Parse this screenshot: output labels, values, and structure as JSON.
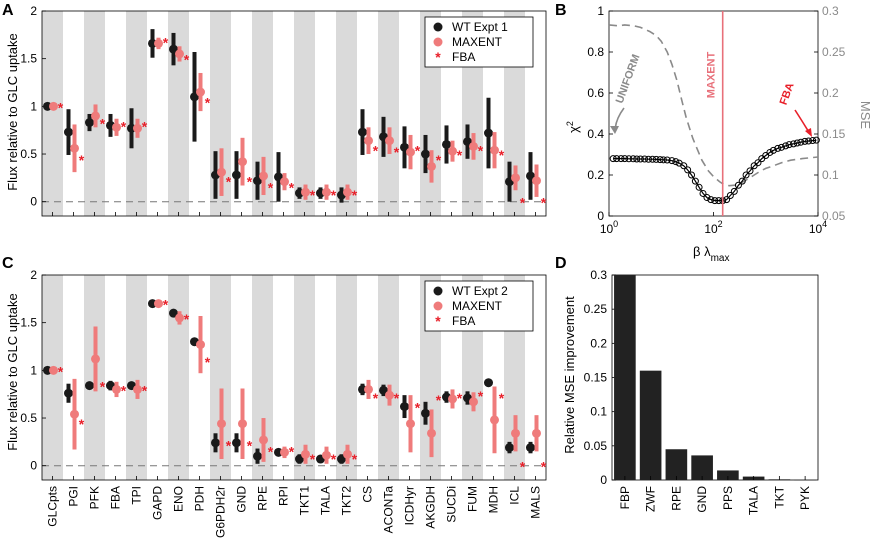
{
  "panel_labels": {
    "A": "A",
    "B": "B",
    "C": "C",
    "D": "D"
  },
  "colors": {
    "wt": "#1a1a1a",
    "maxent": "#ef7b7b",
    "fba": "#e8202a",
    "band": "#dadada",
    "mse": "#8a8a8a",
    "vline": "#e8707a",
    "bar": "#222222"
  },
  "chart_data": [
    {
      "id": "A",
      "type": "scatter",
      "ylabel": "Flux relative to GLC uptake",
      "ylim": [
        -0.15,
        2
      ],
      "yticks": [
        0,
        0.5,
        1,
        1.5,
        2
      ],
      "ytick_labels": [
        "0",
        "0.5",
        "1",
        "1.5",
        "2"
      ],
      "legend": [
        "WT Expt 1",
        "MAXENT",
        "FBA"
      ],
      "categories": [
        "GLCpts",
        "PGI",
        "PFK",
        "FBA",
        "TPI",
        "GAPD",
        "ENO",
        "PDH",
        "G6PDH2r",
        "GND",
        "RPE",
        "RPI",
        "TKT1",
        "TALA",
        "TKT2",
        "CS",
        "ACONTa",
        "ICDHyr",
        "AKGDH",
        "SUCDi",
        "FUM",
        "MDH",
        "ICL",
        "MALS"
      ],
      "wt": [
        [
          1.0,
          0.0
        ],
        [
          0.73,
          0.24
        ],
        [
          0.83,
          0.09
        ],
        [
          0.8,
          0.12
        ],
        [
          0.77,
          0.21
        ],
        [
          1.66,
          0.15
        ],
        [
          1.6,
          0.17
        ],
        [
          1.1,
          0.47
        ],
        [
          0.28,
          0.25
        ],
        [
          0.28,
          0.25
        ],
        [
          0.22,
          0.2
        ],
        [
          0.26,
          0.26
        ],
        [
          0.09,
          0.06
        ],
        [
          0.09,
          0.06
        ],
        [
          0.07,
          0.08
        ],
        [
          0.73,
          0.24
        ],
        [
          0.68,
          0.21
        ],
        [
          0.57,
          0.22
        ],
        [
          0.5,
          0.2
        ],
        [
          0.6,
          0.2
        ],
        [
          0.63,
          0.18
        ],
        [
          0.72,
          0.37
        ],
        [
          0.21,
          0.21
        ],
        [
          0.27,
          0.25
        ]
      ],
      "maxent": [
        [
          1.0,
          0.0
        ],
        [
          0.56,
          0.25
        ],
        [
          0.9,
          0.12
        ],
        [
          0.78,
          0.09
        ],
        [
          0.77,
          0.1
        ],
        [
          1.66,
          0.06
        ],
        [
          1.55,
          0.08
        ],
        [
          1.15,
          0.2
        ],
        [
          0.31,
          0.25
        ],
        [
          0.42,
          0.25
        ],
        [
          0.27,
          0.2
        ],
        [
          0.21,
          0.09
        ],
        [
          0.1,
          0.08
        ],
        [
          0.1,
          0.08
        ],
        [
          0.1,
          0.08
        ],
        [
          0.64,
          0.14
        ],
        [
          0.64,
          0.14
        ],
        [
          0.52,
          0.18
        ],
        [
          0.37,
          0.17
        ],
        [
          0.53,
          0.11
        ],
        [
          0.58,
          0.14
        ],
        [
          0.54,
          0.19
        ],
        [
          0.25,
          0.13
        ],
        [
          0.22,
          0.17
        ]
      ],
      "fba": [
        1.0,
        0.45,
        0.83,
        0.8,
        0.8,
        1.68,
        1.5,
        1.05,
        0.22,
        0.22,
        0.16,
        0.16,
        0.08,
        0.08,
        0.08,
        0.55,
        0.53,
        0.55,
        0.45,
        0.5,
        0.55,
        0.5,
        0.0,
        0.0
      ]
    },
    {
      "id": "B",
      "type": "line",
      "xlabel": "β λ",
      "xlabel_sub": "max",
      "ylabel": "χ",
      "ylabel_sup": "2",
      "ylabel_right": "MSE",
      "xscale": "log",
      "xlim": [
        1,
        10000
      ],
      "xticks": [
        1,
        100,
        10000
      ],
      "xtick_labels": [
        "10",
        "10",
        "10"
      ],
      "xtick_exps": [
        "0",
        "2",
        "4"
      ],
      "ylim": [
        0,
        1
      ],
      "yticks": [
        0,
        0.2,
        0.4,
        0.6,
        0.8,
        1
      ],
      "ytick_labels": [
        "0",
        "0.2",
        "0.4",
        "0.6",
        "0.8",
        "1"
      ],
      "ylim_right": [
        0.05,
        0.3
      ],
      "yticks_right": [
        0.05,
        0.1,
        0.15,
        0.2,
        0.25,
        0.3
      ],
      "ytick_labels_right": [
        "0.05",
        "0.1",
        "0.15",
        "0.2",
        "0.25",
        "0.3"
      ],
      "maxent_at": 150,
      "annotations": {
        "uniform": "UNIFORM",
        "maxent": "MAXENT",
        "fba": "FBA"
      },
      "chi2": {
        "x": [
          1.2,
          1.4,
          1.7,
          2,
          2.4,
          2.9,
          3.4,
          4,
          4.8,
          5.7,
          6.8,
          8,
          9.5,
          11,
          13,
          16,
          19,
          22,
          27,
          32,
          38,
          45,
          53,
          63,
          75,
          89,
          106,
          126,
          150,
          178,
          210,
          250,
          300,
          355,
          420,
          500,
          600,
          710,
          840,
          1000,
          1200,
          1400,
          1700,
          2000,
          2400,
          2800,
          3400,
          4000,
          4700,
          5600,
          6600,
          7900,
          9300
        ],
        "y": [
          0.28,
          0.28,
          0.28,
          0.28,
          0.279,
          0.279,
          0.278,
          0.278,
          0.278,
          0.277,
          0.277,
          0.276,
          0.275,
          0.274,
          0.273,
          0.27,
          0.265,
          0.258,
          0.245,
          0.225,
          0.2,
          0.17,
          0.14,
          0.11,
          0.09,
          0.08,
          0.075,
          0.075,
          0.075,
          0.08,
          0.1,
          0.12,
          0.15,
          0.17,
          0.2,
          0.22,
          0.245,
          0.26,
          0.28,
          0.295,
          0.31,
          0.32,
          0.33,
          0.335,
          0.342,
          0.348,
          0.352,
          0.356,
          0.36,
          0.364,
          0.366,
          0.368,
          0.37
        ]
      },
      "mse": {
        "x": [
          1,
          1.5,
          2,
          3,
          4,
          6,
          8,
          10,
          13,
          16,
          20,
          25,
          30,
          40,
          50,
          60,
          80,
          100,
          130,
          160,
          200,
          300,
          400,
          600,
          800,
          1000,
          1500,
          2000,
          3000,
          5000,
          10000
        ],
        "y": [
          0.283,
          0.282,
          0.283,
          0.282,
          0.28,
          0.275,
          0.27,
          0.263,
          0.25,
          0.235,
          0.215,
          0.19,
          0.17,
          0.145,
          0.13,
          0.118,
          0.105,
          0.098,
          0.092,
          0.088,
          0.087,
          0.088,
          0.093,
          0.1,
          0.105,
          0.108,
          0.112,
          0.115,
          0.118,
          0.12,
          0.122
        ]
      }
    },
    {
      "id": "C",
      "type": "scatter",
      "ylabel": "Flux relative to GLC uptake",
      "ylim": [
        -0.15,
        2
      ],
      "yticks": [
        0,
        0.5,
        1,
        1.5,
        2
      ],
      "ytick_labels": [
        "0",
        "0.5",
        "1",
        "1.5",
        "2"
      ],
      "legend": [
        "WT Expt 2",
        "MAXENT",
        "FBA"
      ],
      "categories": [
        "GLCpts",
        "PGI",
        "PFK",
        "FBA",
        "TPI",
        "GAPD",
        "ENO",
        "PDH",
        "G6PDH2r",
        "GND",
        "RPE",
        "RPI",
        "TKT1",
        "TALA",
        "TKT2",
        "CS",
        "ACONTa",
        "ICDHyr",
        "AKGDH",
        "SUCDi",
        "FUM",
        "MDH",
        "ICL",
        "MALS"
      ],
      "wt": [
        [
          1.0,
          0.0
        ],
        [
          0.76,
          0.1
        ],
        [
          0.84,
          0.0
        ],
        [
          0.84,
          0.05
        ],
        [
          0.84,
          0.04
        ],
        [
          1.7,
          0.02
        ],
        [
          1.6,
          0.03
        ],
        [
          1.3,
          0.04
        ],
        [
          0.24,
          0.1
        ],
        [
          0.24,
          0.1
        ],
        [
          0.1,
          0.08
        ],
        [
          0.14,
          0.03
        ],
        [
          0.07,
          0.05
        ],
        [
          0.07,
          0.04
        ],
        [
          0.07,
          0.05
        ],
        [
          0.8,
          0.06
        ],
        [
          0.79,
          0.06
        ],
        [
          0.62,
          0.12
        ],
        [
          0.55,
          0.12
        ],
        [
          0.72,
          0.06
        ],
        [
          0.71,
          0.07
        ],
        [
          0.87,
          0.0
        ],
        [
          0.19,
          0.06
        ],
        [
          0.19,
          0.06
        ]
      ],
      "maxent": [
        [
          1.0,
          0.0
        ],
        [
          0.54,
          0.37
        ],
        [
          1.12,
          0.34
        ],
        [
          0.8,
          0.08
        ],
        [
          0.8,
          0.1
        ],
        [
          1.7,
          0.04
        ],
        [
          1.55,
          0.07
        ],
        [
          1.27,
          0.3
        ],
        [
          0.44,
          0.37
        ],
        [
          0.44,
          0.37
        ],
        [
          0.27,
          0.23
        ],
        [
          0.14,
          0.06
        ],
        [
          0.12,
          0.1
        ],
        [
          0.11,
          0.09
        ],
        [
          0.12,
          0.1
        ],
        [
          0.8,
          0.1
        ],
        [
          0.74,
          0.11
        ],
        [
          0.44,
          0.3
        ],
        [
          0.34,
          0.25
        ],
        [
          0.7,
          0.1
        ],
        [
          0.67,
          0.1
        ],
        [
          0.48,
          0.35
        ],
        [
          0.34,
          0.19
        ],
        [
          0.34,
          0.19
        ]
      ],
      "fba": [
        1.0,
        0.45,
        0.84,
        0.8,
        0.8,
        1.7,
        1.55,
        1.1,
        0.22,
        0.22,
        0.16,
        0.16,
        0.08,
        0.08,
        0.08,
        0.72,
        0.72,
        0.62,
        0.7,
        0.72,
        0.74,
        0.72,
        0.0,
        0.0
      ]
    },
    {
      "id": "D",
      "type": "bar",
      "ylabel": "Relative MSE improvement",
      "ylim": [
        0,
        0.3
      ],
      "yticks": [
        0,
        0.05,
        0.1,
        0.15,
        0.2,
        0.25,
        0.3
      ],
      "ytick_labels": [
        "0",
        "0.05",
        "0.1",
        "0.15",
        "0.2",
        "0.25",
        "0.3"
      ],
      "categories": [
        "FBP",
        "ZWF",
        "RPE",
        "GND",
        "PPS",
        "TALA",
        "TKT",
        "PYK"
      ],
      "values": [
        0.3,
        0.16,
        0.045,
        0.036,
        0.014,
        0.005,
        0.001,
        0.0003
      ]
    }
  ]
}
